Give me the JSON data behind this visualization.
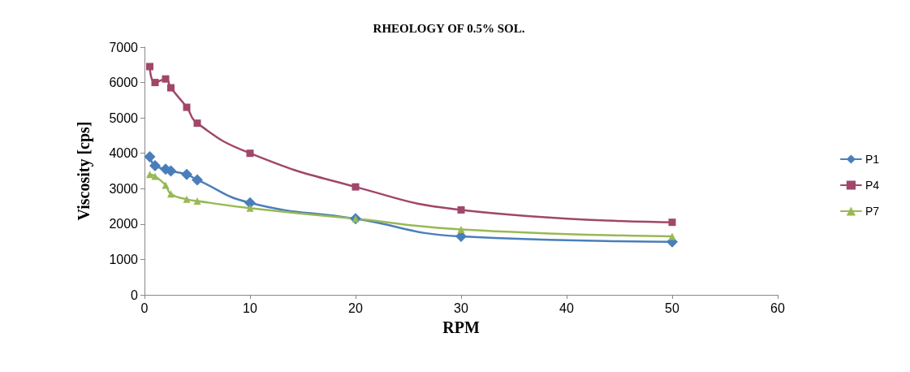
{
  "chart_data": {
    "type": "line",
    "title": "RHEOLOGY OF 0.5% SOL.",
    "xlabel": "RPM",
    "ylabel": "Viscosity [cps]",
    "xlim": [
      0,
      60
    ],
    "xticks": [
      0,
      10,
      20,
      30,
      40,
      50,
      60
    ],
    "ylim": [
      0,
      7000
    ],
    "yticks": [
      0,
      1000,
      2000,
      3000,
      4000,
      5000,
      6000,
      7000
    ],
    "grid": false,
    "legend": "right",
    "x": [
      0.5,
      1,
      2,
      2.5,
      4,
      5,
      10,
      20,
      30,
      50
    ],
    "series": [
      {
        "name": "P1",
        "color": "#4a7ebb",
        "marker": "diamond",
        "values": [
          3900,
          3650,
          3550,
          3500,
          3400,
          3250,
          2600,
          2150,
          1650,
          1500
        ]
      },
      {
        "name": "P4",
        "color": "#a0476a",
        "marker": "square",
        "values": [
          6450,
          6000,
          6100,
          5850,
          5300,
          4850,
          4000,
          3050,
          2400,
          2050
        ]
      },
      {
        "name": "P7",
        "color": "#98b954",
        "marker": "triangle",
        "values": [
          3400,
          3350,
          3100,
          2850,
          2700,
          2650,
          2450,
          2150,
          1850,
          1650
        ]
      }
    ]
  }
}
